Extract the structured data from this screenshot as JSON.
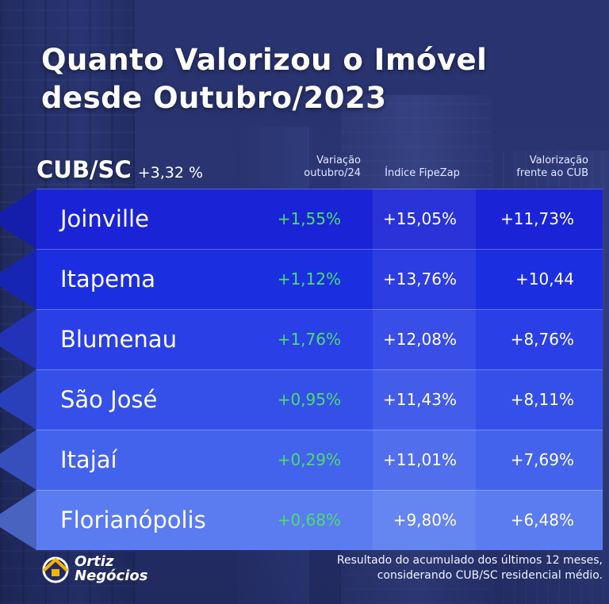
{
  "title": {
    "line1": "Quanto Valorizou o Imóvel",
    "line2": "desde Outubro/2023"
  },
  "cub": {
    "label": "CUB/SC",
    "value": "+3,32 %"
  },
  "headers": {
    "variacao_line1": "Variação",
    "variacao_line2": "outubro/24",
    "fipezap": "Índice FipeZap",
    "valorizacao_line1": "Valorização",
    "valorizacao_line2": "frente ao CUB"
  },
  "chart_data": {
    "type": "table",
    "columns": [
      "Variação outubro/24",
      "Índice FipeZap",
      "Valorização frente ao CUB"
    ],
    "rows": [
      {
        "city": "Joinville",
        "variacao": "+1,55%",
        "fipezap": "+15,05%",
        "valorizacao": "+11,73%"
      },
      {
        "city": "Itapema",
        "variacao": "+1,12%",
        "fipezap": "+13,76%",
        "valorizacao": "+10,44"
      },
      {
        "city": "Blumenau",
        "variacao": "+1,76%",
        "fipezap": "+12,08%",
        "valorizacao": "+8,76%"
      },
      {
        "city": "São José",
        "variacao": "+0,95%",
        "fipezap": "+11,43%",
        "valorizacao": "+8,11%"
      },
      {
        "city": "Itajaí",
        "variacao": "+0,29%",
        "fipezap": "+11,01%",
        "valorizacao": "+7,69%"
      },
      {
        "city": "Florianópolis",
        "variacao": "+0,68%",
        "fipezap": "+9,80%",
        "valorizacao": "+6,48%"
      }
    ]
  },
  "row_colors": [
    "#1a24d6",
    "#1c2fe0",
    "#2a40e6",
    "#3550e8",
    "#4463ec",
    "#5a7cf0"
  ],
  "colors": {
    "positive": "#4ade6a"
  },
  "logo": {
    "line1": "Ortiz",
    "line2": "Negócios"
  },
  "footnote": {
    "line1": "Resultado do acumulado dos últimos 12 meses,",
    "line2": "considerando CUB/SC residencial médio."
  }
}
